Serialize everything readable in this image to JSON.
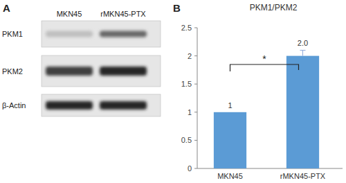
{
  "chart_data": {
    "type": "bar",
    "panel_label": "B",
    "title": "PKM1/PKM2",
    "categories": [
      "MKN45",
      "rMKN45-PTX"
    ],
    "values": [
      1,
      2.0
    ],
    "value_labels": [
      "1",
      "2.0"
    ],
    "errors": [
      0,
      0.1
    ],
    "color": "#5b9bd5",
    "data_labels": true,
    "grid": false,
    "ylim": [
      0,
      2.5
    ],
    "yticks": [
      0,
      0.5,
      1,
      1.5,
      2,
      2.5
    ],
    "annotations": [
      {
        "text": "*"
      }
    ]
  },
  "blot": {
    "panel_label": "A",
    "lanes": [
      "MKN45",
      "rMKN45-PTX"
    ],
    "rows": [
      "PKM1",
      "PKM2",
      "β-Actin"
    ]
  }
}
